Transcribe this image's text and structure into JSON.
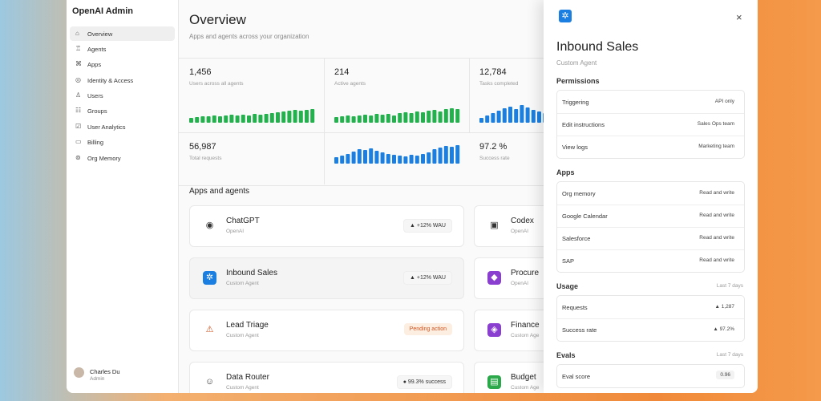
{
  "sidebar": {
    "title": "OpenAI Admin",
    "nav": [
      "Overview",
      "Agents",
      "Apps",
      "Identity & Access",
      "Users",
      "Groups",
      "User Analytics",
      "Billing",
      "Org Memory"
    ],
    "user": {
      "name": "Charles Du",
      "role": "Admin"
    }
  },
  "main": {
    "title": "Overview",
    "subtitle": "Apps and agents across your organization",
    "stats": [
      {
        "value": "1,456",
        "label": "Users across all agents",
        "color": "#22b14c",
        "bars": [
          6,
          7,
          8,
          8,
          9,
          8,
          9,
          10,
          9,
          10,
          9,
          11,
          10,
          11,
          12,
          13,
          14,
          15,
          16,
          15,
          16,
          17
        ]
      },
      {
        "value": "214",
        "label": "Active agents",
        "color": "#22b14c",
        "bars": [
          7,
          8,
          9,
          8,
          9,
          10,
          9,
          11,
          10,
          11,
          9,
          12,
          13,
          12,
          14,
          13,
          15,
          16,
          14,
          17,
          18,
          17
        ]
      },
      {
        "value": "12,784",
        "label": "Tasks completed",
        "color": "#1a7fe0",
        "bars": [
          6,
          9,
          12,
          15,
          18,
          20,
          17,
          22,
          19,
          16,
          14,
          12
        ]
      },
      {
        "value": "56,987",
        "label": "Total requests",
        "color": "#1a7fe0",
        "bars": [
          8,
          10,
          12,
          15,
          18,
          17,
          19,
          16,
          14,
          12,
          11,
          10,
          9,
          11,
          10,
          12,
          14,
          18,
          20,
          22,
          21,
          23
        ]
      },
      {
        "value": "97.2 %",
        "label": "Success rate"
      }
    ],
    "section": "Apps and agents",
    "cards": [
      {
        "name": "ChatGPT",
        "kind": "OpenAI",
        "badge": "▲ +12% WAU"
      },
      {
        "name": "Codex",
        "kind": "OpenAI"
      },
      {
        "name": "Inbound Sales",
        "kind": "Custom Agent",
        "badge": "▲ +12% WAU"
      },
      {
        "name": "Procure",
        "kind": "OpenAI"
      },
      {
        "name": "Lead Triage",
        "kind": "Custom Agent",
        "badge": "Pending action"
      },
      {
        "name": "Finance",
        "kind": "Custom Age"
      },
      {
        "name": "Data Router",
        "kind": "Custom Agent",
        "badge": "● 99.3% success"
      },
      {
        "name": "Budget",
        "kind": "Custom Age"
      }
    ]
  },
  "panel": {
    "title": "Inbound Sales",
    "subtitle": "Custom Agent",
    "sections": [
      {
        "heading": "Permissions",
        "rows": [
          [
            "Triggering",
            "API only"
          ],
          [
            "Edit instructions",
            "Sales Ops team"
          ],
          [
            "View logs",
            "Marketing team"
          ]
        ]
      },
      {
        "heading": "Apps",
        "rows": [
          [
            "Org memory",
            "Read and write"
          ],
          [
            "Google Calendar",
            "Read and write"
          ],
          [
            "Salesforce",
            "Read and write"
          ],
          [
            "SAP",
            "Read and write"
          ]
        ]
      },
      {
        "heading": "Usage",
        "note": "Last 7 days",
        "rows": [
          [
            "Requests",
            "▲ 1,287"
          ],
          [
            "Success rate",
            "▲ 97.2%"
          ]
        ]
      },
      {
        "heading": "Evals",
        "note": "Last 7 days",
        "rows": [
          [
            "Eval score",
            "0.96"
          ]
        ]
      }
    ]
  }
}
